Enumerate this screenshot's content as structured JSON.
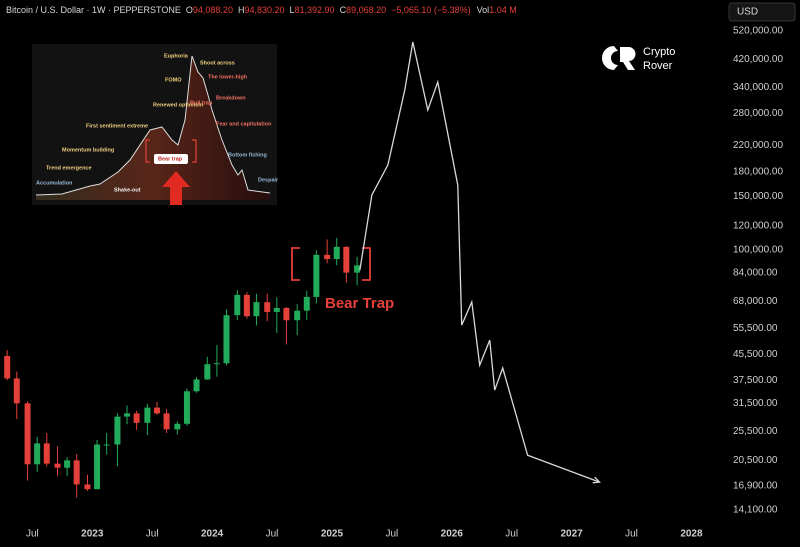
{
  "header": {
    "symbol": "Bitcoin / U.S. Dollar · 1W · PEPPERSTONE",
    "ohlc": [
      {
        "key": "O",
        "value": "94,088.20"
      },
      {
        "key": "H",
        "value": "94,830.20"
      },
      {
        "key": "L",
        "value": "81,392.90"
      },
      {
        "key": "C",
        "value": "89,068.20"
      }
    ],
    "change": "−5,065.10 (−5.38%)",
    "volume_key": "Vol",
    "volume": "1.04 M",
    "currency": "USD",
    "logo": [
      "Crypto",
      "Rover"
    ]
  },
  "inset": {
    "labels": [
      "Euphoria",
      "Shoot across",
      "The lower-high",
      "FOMO",
      "Bull trap",
      "Breakdown",
      "Renewed optimism",
      "First sentiment extreme",
      "Fear and capitulation",
      "Momentum building",
      "Bear trap",
      "Bottom fishing",
      "Trend emergence",
      "Accumulation",
      "Shake-out",
      "Despair"
    ]
  },
  "chart_data": {
    "type": "candlestick",
    "annotation": "Bear Trap",
    "log_scale": true,
    "grid": false,
    "up_color": "#22ab5a",
    "down_color": "#e5403a",
    "xlim": [
      2022.23,
      2028.28
    ],
    "xticks": [
      {
        "value": 2022.5,
        "label": "Jul"
      },
      2023,
      {
        "value": 2023.5,
        "label": "Jul"
      },
      2024,
      {
        "value": 2024.5,
        "label": "Jul"
      },
      2025,
      {
        "value": 2025.5,
        "label": "Jul"
      },
      2026,
      {
        "value": 2026.5,
        "label": "Jul"
      },
      2027,
      {
        "value": 2027.5,
        "label": "Jul"
      },
      2028
    ],
    "ylim": [
      12600,
      657000
    ],
    "yticks": [
      {
        "value": 520000,
        "label": "520,000.00"
      },
      {
        "value": 420000,
        "label": "420,000.00"
      },
      {
        "value": 340000,
        "label": "340,000.00"
      },
      {
        "value": 280000,
        "label": "280,000.00"
      },
      {
        "value": 220000,
        "label": "220,000.00"
      },
      {
        "value": 180000,
        "label": "180,000.00"
      },
      {
        "value": 150000,
        "label": "150,000.00"
      },
      {
        "value": 120000,
        "label": "120,000.00"
      },
      {
        "value": 100000,
        "label": "100,000.00"
      },
      {
        "value": 84000,
        "label": "84,000.00"
      },
      {
        "value": 68000,
        "label": "68,000.00"
      },
      {
        "value": 55500,
        "label": "55,500.00"
      },
      {
        "value": 45500,
        "label": "45,500.00"
      },
      {
        "value": 37500,
        "label": "37,500.00"
      },
      {
        "value": 31500,
        "label": "31,500.00"
      },
      {
        "value": 25500,
        "label": "25,500.00"
      },
      {
        "value": 20500,
        "label": "20,500.00"
      },
      {
        "value": 16900,
        "label": "16,900.00"
      },
      {
        "value": 14100,
        "label": "14,100.00"
      }
    ],
    "x": [
      2022.29,
      2022.37,
      2022.46,
      2022.54,
      2022.62,
      2022.71,
      2022.79,
      2022.87,
      2022.96,
      2023.04,
      2023.12,
      2023.21,
      2023.29,
      2023.37,
      2023.46,
      2023.54,
      2023.62,
      2023.71,
      2023.79,
      2023.87,
      2023.96,
      2024.04,
      2024.12,
      2024.21,
      2024.29,
      2024.37,
      2024.46,
      2024.54,
      2024.62,
      2024.71,
      2024.79,
      2024.87,
      2024.96,
      2025.04,
      2025.12,
      2025.21
    ],
    "open": [
      45000,
      38000,
      31500,
      19900,
      23300,
      20000,
      19400,
      20500,
      17100,
      16500,
      23100,
      23100,
      28500,
      29200,
      27200,
      30500,
      29200,
      25900,
      27000,
      34500,
      37700,
      42300,
      42600,
      61200,
      71300,
      60700,
      67500,
      62700,
      64600,
      58900,
      63300,
      70200,
      96400,
      93400,
      102400,
      84300
    ],
    "high": [
      47000,
      40000,
      32000,
      24500,
      25200,
      22800,
      21000,
      21500,
      18400,
      23900,
      25200,
      29200,
      31000,
      29800,
      31400,
      31800,
      30200,
      27500,
      35200,
      38400,
      44700,
      48900,
      64000,
      73800,
      72800,
      71900,
      71900,
      70000,
      65100,
      66500,
      73600,
      99800,
      108300,
      109500,
      102700,
      95000
    ],
    "low": [
      37500,
      28000,
      17600,
      18800,
      19600,
      18200,
      18200,
      15500,
      16300,
      16500,
      21400,
      19600,
      26900,
      25800,
      24800,
      28900,
      25200,
      24900,
      26600,
      34100,
      37600,
      38500,
      41900,
      59000,
      59600,
      56600,
      58500,
      53500,
      49100,
      52600,
      58900,
      66800,
      90500,
      89200,
      78200,
      76600
    ],
    "close": [
      38000,
      31500,
      19900,
      23300,
      20000,
      19400,
      20500,
      17100,
      16500,
      23100,
      23100,
      28500,
      29200,
      27200,
      30500,
      29200,
      25900,
      27000,
      34500,
      37700,
      42300,
      42600,
      61200,
      71300,
      60700,
      67500,
      62700,
      64600,
      58900,
      63300,
      70200,
      96400,
      93400,
      102400,
      84300,
      89068
    ],
    "projection": {
      "color": "#d9d9d9",
      "x": [
        2025.233,
        2025.333,
        2025.467,
        2025.608,
        2025.675,
        2025.8,
        2025.883,
        2026.05,
        2026.083,
        2026.167,
        2026.233,
        2026.317,
        2026.358,
        2026.425,
        2026.633,
        2027.233
      ],
      "values": [
        85900,
        151200,
        189700,
        333800,
        478700,
        287000,
        354200,
        163000,
        56800,
        67600,
        42000,
        50700,
        34800,
        41100,
        21300,
        17400
      ]
    }
  }
}
